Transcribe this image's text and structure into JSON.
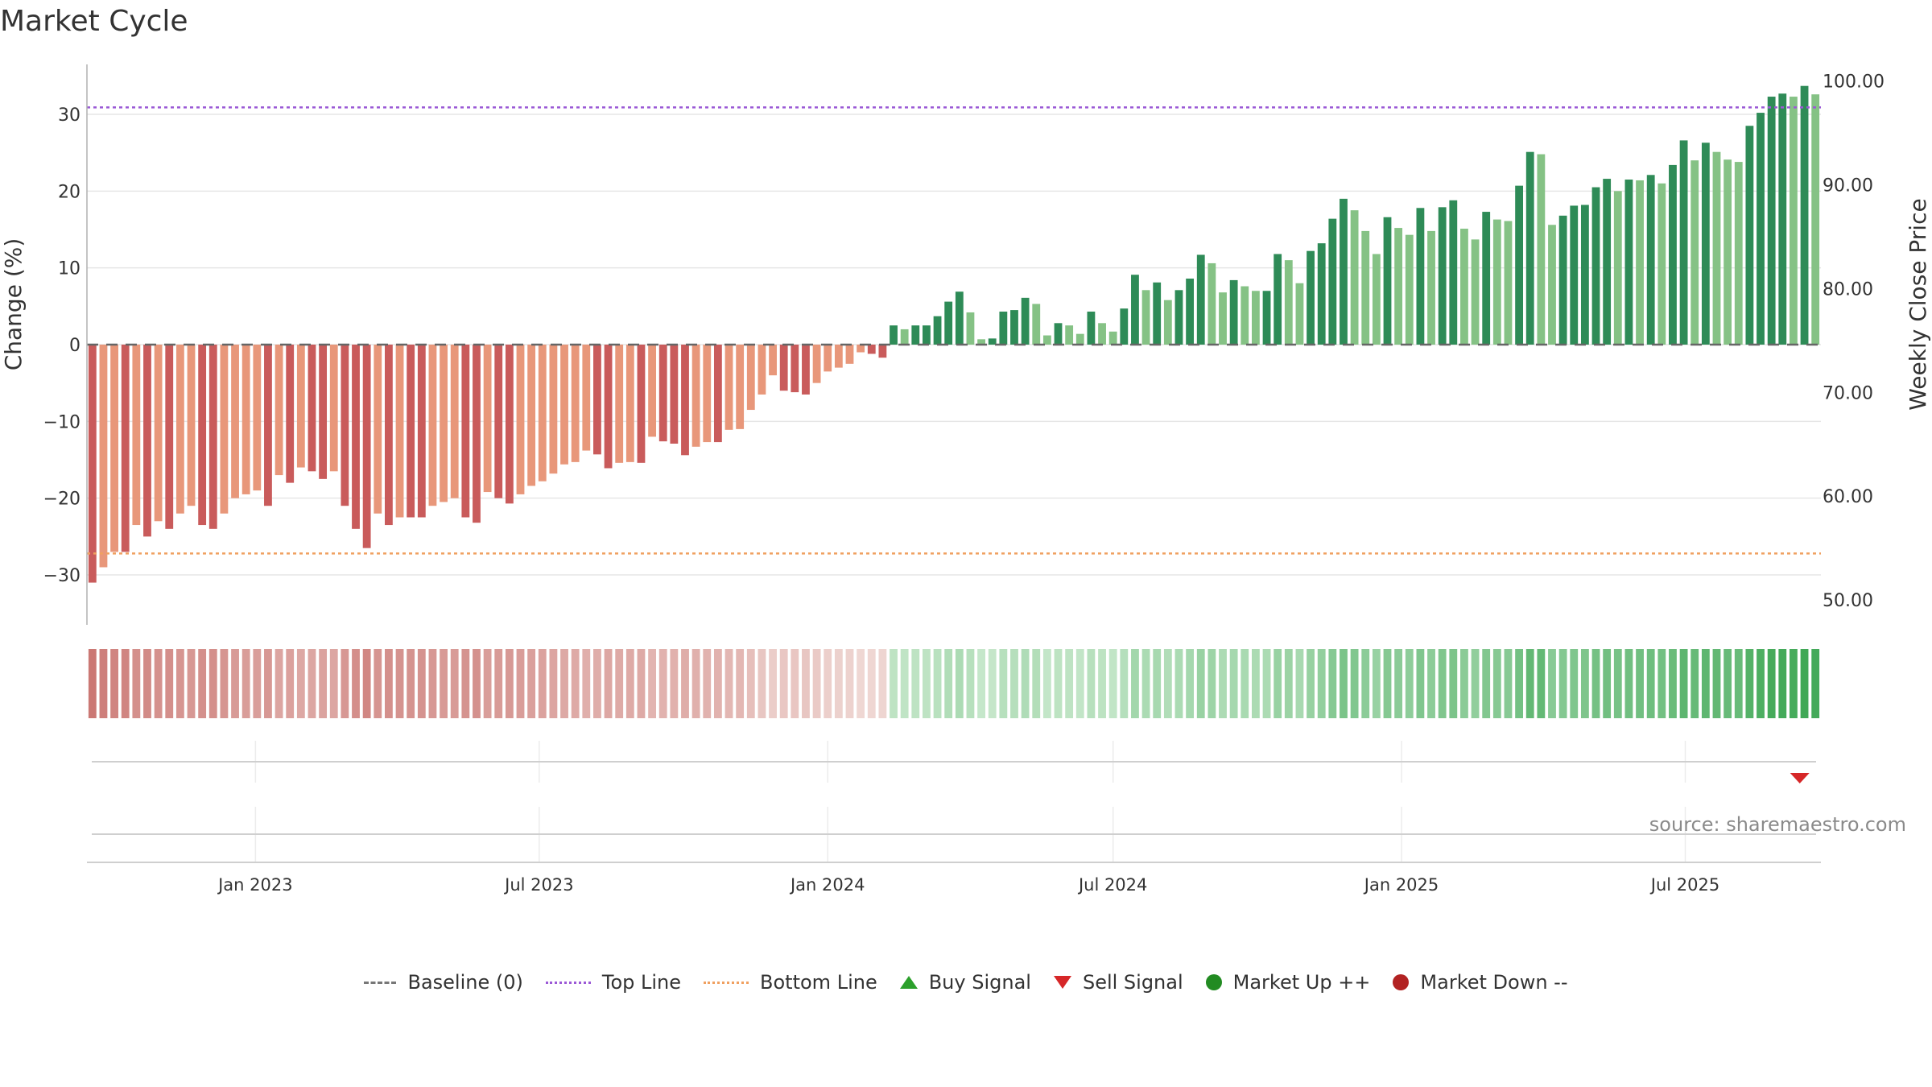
{
  "title": "Market Cycle",
  "source": "source: sharemaestro.com",
  "colors": {
    "neg_dark": "#c95b5b",
    "neg_light": "#e8977a",
    "pos_dark": "#2e8b57",
    "pos_light": "#85c285",
    "top_line": "#9b59d6",
    "bottom_line": "#f0a060",
    "sell_signal": "#d62728"
  },
  "legend": [
    {
      "key": "baseline",
      "label": "Baseline (0)"
    },
    {
      "key": "top",
      "label": "Top Line"
    },
    {
      "key": "bottom",
      "label": "Bottom Line"
    },
    {
      "key": "buy",
      "label": "Buy Signal"
    },
    {
      "key": "sell",
      "label": "Sell Signal"
    },
    {
      "key": "up",
      "label": "Market Up ++"
    },
    {
      "key": "down",
      "label": "Market Down --"
    }
  ],
  "chart_data": {
    "type": "bar",
    "title": "Market Cycle",
    "ylabel": "Change (%)",
    "y2label": "Weekly Close Price",
    "ylim": [
      -36.5,
      36.5
    ],
    "y2lim": [
      47.6,
      101.6
    ],
    "yticks": [
      30,
      20,
      10,
      0,
      -10,
      -20,
      -30
    ],
    "ytick_labels": [
      "30",
      "20",
      "10",
      "0",
      "−10",
      "−20",
      "−30"
    ],
    "y2ticks": [
      100,
      90,
      80,
      70,
      60,
      50
    ],
    "y2tick_labels": [
      "100.00",
      "90.00",
      "80.00",
      "70.00",
      "60.00",
      "50.00"
    ],
    "top_line": 30.9,
    "bottom_line": -27.2,
    "x_start": "2022-09-19",
    "x_step_days": 7,
    "xticks": [
      {
        "date": "2023-01-01",
        "label": "Jan 2023"
      },
      {
        "date": "2023-07-01",
        "label": "Jul 2023"
      },
      {
        "date": "2024-01-01",
        "label": "Jan 2024"
      },
      {
        "date": "2024-07-01",
        "label": "Jul 2024"
      },
      {
        "date": "2025-01-01",
        "label": "Jan 2025"
      },
      {
        "date": "2025-07-01",
        "label": "Jul 2025"
      }
    ],
    "values": [
      -31,
      -29,
      -27,
      -27,
      -23.5,
      -25,
      -23,
      -24,
      -22,
      -21,
      -23.5,
      -24,
      -22,
      -20,
      -19.5,
      -19,
      -21,
      -17,
      -18,
      -16,
      -16.5,
      -17.5,
      -16.5,
      -21,
      -24,
      -26.5,
      -22,
      -23.5,
      -22.5,
      -22.5,
      -22.5,
      -21,
      -20.5,
      -20,
      -22.5,
      -23.2,
      -19.2,
      -20,
      -20.7,
      -19.5,
      -18.4,
      -17.8,
      -16.8,
      -15.6,
      -15.3,
      -13.8,
      -14.3,
      -16.1,
      -15.4,
      -15.3,
      -15.4,
      -12,
      -12.6,
      -12.9,
      -14.4,
      -13.3,
      -12.7,
      -12.7,
      -11.1,
      -11,
      -8.5,
      -6.5,
      -4,
      -6,
      -6.2,
      -6.5,
      -5,
      -3.5,
      -3,
      -2.5,
      -1,
      -1.2,
      -1.7,
      2.5,
      2,
      2.5,
      2.5,
      3.7,
      5.6,
      6.9,
      4.2,
      0.7,
      0.8,
      4.3,
      4.5,
      6.1,
      5.3,
      1.2,
      2.8,
      2.5,
      1.4,
      4.3,
      2.8,
      1.7,
      4.7,
      9.1,
      7.1,
      8.1,
      5.8,
      7.1,
      8.6,
      11.7,
      10.6,
      6.8,
      8.4,
      7.6,
      7,
      7,
      11.8,
      11,
      8,
      12.2,
      13.2,
      16.4,
      19,
      17.5,
      14.8,
      11.8,
      16.6,
      15.2,
      14.3,
      17.8,
      14.8,
      17.9,
      18.8,
      15.1,
      13.7,
      17.3,
      16.3,
      16.1,
      20.7,
      25.1,
      24.8,
      15.6,
      16.8,
      18.1,
      18.2,
      20.5,
      21.6,
      20,
      21.5,
      21.4,
      22.1,
      21,
      23.4,
      26.6,
      24,
      26.3,
      25.1,
      24.1,
      23.8,
      28.5,
      30.2,
      32.3,
      32.7,
      32.3,
      33.7,
      32.6
    ],
    "sell_signals": [
      "2025-09-12"
    ]
  }
}
